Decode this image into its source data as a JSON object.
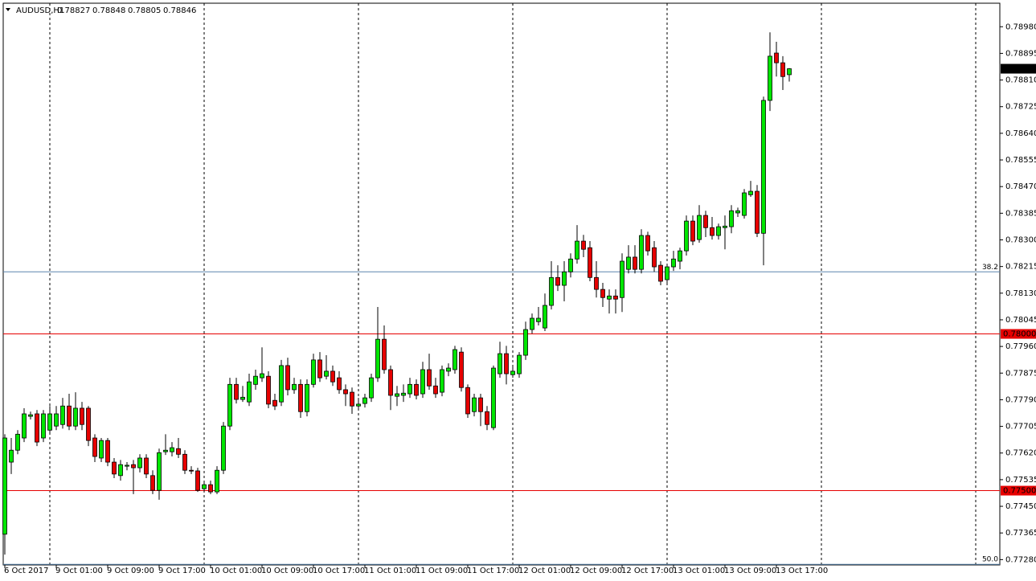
{
  "chart_data": {
    "type": "candlestick",
    "title": "AUDUSD,H1",
    "up_color": "#00e600",
    "down_color": "#e60000",
    "wick_color": "#000000",
    "categories": [
      "6 Oct 2017",
      null,
      null,
      null,
      null,
      null,
      null,
      null,
      "9 Oct 01:00",
      null,
      null,
      null,
      null,
      null,
      null,
      null,
      "9 Oct 09:00",
      null,
      null,
      null,
      null,
      null,
      null,
      null,
      "9 Oct 17:00",
      null,
      null,
      null,
      null,
      null,
      null,
      null,
      "10 Oct 01:00",
      null,
      null,
      null,
      null,
      null,
      null,
      null,
      "10 Oct 09:00",
      null,
      null,
      null,
      null,
      null,
      null,
      null,
      "10 Oct 17:00",
      null,
      null,
      null,
      null,
      null,
      null,
      null,
      "11 Oct 01:00",
      null,
      null,
      null,
      null,
      null,
      null,
      null,
      "11 Oct 09:00",
      null,
      null,
      null,
      null,
      null,
      null,
      null,
      "11 Oct 17:00",
      null,
      null,
      null,
      null,
      null,
      null,
      null,
      "12 Oct 01:00",
      null,
      null,
      null,
      null,
      null,
      null,
      null,
      "12 Oct 09:00",
      null,
      null,
      null,
      null,
      null,
      null,
      null,
      "12 Oct 17:00",
      null,
      null,
      null,
      null,
      null,
      null,
      null,
      "13 Oct 01:00",
      null,
      null,
      null,
      null,
      null,
      null,
      null,
      "13 Oct 09:00",
      null,
      null,
      null,
      null,
      null,
      null,
      null,
      "13 Oct 17:00",
      null,
      null
    ],
    "open": [
      0.77361,
      0.77591,
      0.77629,
      0.77668,
      0.77737,
      0.77745,
      0.77668,
      0.77693,
      0.77706,
      0.77711,
      0.7777,
      0.77706,
      0.77763,
      0.77763,
      0.77668,
      0.77604,
      0.7766,
      0.77591,
      0.77548,
      0.77578,
      0.77583,
      0.77573,
      0.77604,
      0.77548,
      0.77501,
      0.77624,
      0.77624,
      0.77634,
      0.77616,
      0.77565,
      0.77563,
      0.77506,
      0.77519,
      0.77496,
      0.77565,
      0.77706,
      0.77839,
      0.77791,
      0.77783,
      0.77839,
      0.7786,
      0.77865,
      0.77788,
      0.77783,
      0.77899,
      0.77822,
      0.77839,
      0.77752,
      0.77839,
      0.77917,
      0.77865,
      0.77881,
      0.7786,
      0.77822,
      0.77814,
      0.7777,
      0.77778,
      0.77796,
      0.7786,
      0.77983,
      0.77886,
      0.77801,
      0.77804,
      0.77809,
      0.77839,
      0.77809,
      0.77886,
      0.77834,
      0.77814,
      0.77881,
      0.77886,
      0.77942,
      0.77829,
      0.77752,
      0.77796,
      0.77752,
      0.77701,
      0.77873,
      0.77937,
      0.7787,
      0.77873,
      0.77932,
      0.78014,
      0.78039,
      0.78019,
      0.78091,
      0.7818,
      0.78155,
      0.78198,
      0.78239,
      0.78296,
      0.78275,
      0.7818,
      0.78142,
      0.78111,
      0.78121,
      0.78116,
      0.78206,
      0.78245,
      0.78206,
      0.78314,
      0.78275,
      0.78219,
      0.78173,
      0.78214,
      0.78232,
      0.78265,
      0.7836,
      0.78301,
      0.78378,
      0.78339,
      0.78314,
      0.78339,
      0.78342,
      0.78386,
      0.78378,
      0.78444,
      0.78455,
      0.78321,
      0.78745,
      0.78896,
      0.78865,
      0.78827
    ],
    "high": [
      0.7768,
      0.77668,
      0.77693,
      0.77763,
      0.77752,
      0.77757,
      0.77757,
      0.7777,
      0.7777,
      0.77796,
      0.77809,
      0.77814,
      0.77783,
      0.7777,
      0.7768,
      0.77668,
      0.77668,
      0.77604,
      0.77598,
      0.77591,
      0.77598,
      0.77616,
      0.77616,
      0.77565,
      0.77634,
      0.7768,
      0.77655,
      0.77668,
      0.77629,
      0.77578,
      0.77573,
      0.77532,
      0.77532,
      0.77578,
      0.77719,
      0.7786,
      0.7786,
      0.77834,
      0.77873,
      0.77886,
      0.77957,
      0.77881,
      0.77809,
      0.77917,
      0.77924,
      0.7786,
      0.77855,
      0.77855,
      0.77937,
      0.77942,
      0.77932,
      0.77899,
      0.77881,
      0.77839,
      0.77829,
      0.77796,
      0.77809,
      0.77873,
      0.78086,
      0.78027,
      0.77899,
      0.77834,
      0.77839,
      0.7786,
      0.77855,
      0.77911,
      0.77937,
      0.7786,
      0.77899,
      0.77906,
      0.77962,
      0.77957,
      0.77839,
      0.77809,
      0.77809,
      0.7777,
      0.77899,
      0.77975,
      0.77962,
      0.77899,
      0.77942,
      0.78039,
      0.78065,
      0.78086,
      0.78129,
      0.78232,
      0.78219,
      0.78232,
      0.78257,
      0.78347,
      0.78316,
      0.78296,
      0.78232,
      0.78163,
      0.78142,
      0.78142,
      0.78257,
      0.78283,
      0.78283,
      0.78334,
      0.78326,
      0.78296,
      0.78232,
      0.78224,
      0.78265,
      0.78275,
      0.78378,
      0.78378,
      0.78411,
      0.78393,
      0.78373,
      0.78352,
      0.78378,
      0.78411,
      0.78403,
      0.78462,
      0.78488,
      0.78475,
      0.78757,
      0.78962,
      0.78932,
      0.78886,
      0.78848
    ],
    "low": [
      0.77296,
      0.77553,
      0.77616,
      0.77655,
      0.77727,
      0.77642,
      0.77655,
      0.7768,
      0.77693,
      0.77698,
      0.77693,
      0.77693,
      0.77693,
      0.77642,
      0.77591,
      0.77591,
      0.77578,
      0.7754,
      0.77532,
      0.77565,
      0.77489,
      0.77558,
      0.7754,
      0.77489,
      0.77471,
      0.77614,
      0.77609,
      0.77604,
      0.77553,
      0.77553,
      0.77496,
      0.77496,
      0.77489,
      0.77489,
      0.77553,
      0.77693,
      0.77778,
      0.77783,
      0.7777,
      0.77822,
      0.77847,
      0.77763,
      0.77757,
      0.7777,
      0.77804,
      0.77809,
      0.77732,
      0.77737,
      0.77829,
      0.77847,
      0.77855,
      0.77834,
      0.77809,
      0.7777,
      0.77745,
      0.77757,
      0.77765,
      0.77783,
      0.77847,
      0.77873,
      0.77757,
      0.7777,
      0.77783,
      0.77796,
      0.77791,
      0.77796,
      0.77822,
      0.77796,
      0.77801,
      0.77865,
      0.77873,
      0.77816,
      0.77732,
      0.77737,
      0.77706,
      0.77693,
      0.77693,
      0.7786,
      0.77839,
      0.7786,
      0.7786,
      0.77917,
      0.78001,
      0.78027,
      0.78009,
      0.78078,
      0.78137,
      0.78104,
      0.7818,
      0.78224,
      0.78245,
      0.78168,
      0.78116,
      0.78086,
      0.78065,
      0.78065,
      0.7807,
      0.78193,
      0.78193,
      0.78193,
      0.7825,
      0.78198,
      0.78155,
      0.78163,
      0.78201,
      0.78206,
      0.7825,
      0.78283,
      0.78291,
      0.78309,
      0.78301,
      0.78301,
      0.7827,
      0.78321,
      0.78373,
      0.78368,
      0.78437,
      0.78309,
      0.78219,
      0.78711,
      0.78821,
      0.78778,
      0.78805
    ],
    "close": [
      0.77668,
      0.77629,
      0.7768,
      0.77745,
      0.77742,
      0.77655,
      0.77745,
      0.77745,
      0.77745,
      0.7777,
      0.77706,
      0.77763,
      0.77711,
      0.7766,
      0.77609,
      0.7766,
      0.77591,
      0.77553,
      0.77583,
      0.77581,
      0.77573,
      0.77604,
      0.77553,
      0.77501,
      0.77621,
      0.77629,
      0.77637,
      0.77616,
      0.77565,
      0.77563,
      0.77501,
      0.77519,
      0.77496,
      0.77565,
      0.77706,
      0.77839,
      0.77791,
      0.77798,
      0.77847,
      0.77865,
      0.77873,
      0.77776,
      0.7777,
      0.77899,
      0.77822,
      0.77839,
      0.77752,
      0.77839,
      0.77917,
      0.7786,
      0.77881,
      0.77847,
      0.77822,
      0.77809,
      0.7777,
      0.77776,
      0.77796,
      0.7786,
      0.77983,
      0.77886,
      0.77804,
      0.77809,
      0.77811,
      0.77839,
      0.77804,
      0.77886,
      0.77834,
      0.77809,
      0.77886,
      0.77891,
      0.7795,
      0.77829,
      0.77745,
      0.77796,
      0.77752,
      0.77711,
      0.77891,
      0.77937,
      0.77873,
      0.77881,
      0.77932,
      0.78014,
      0.7805,
      0.7805,
      0.78091,
      0.7818,
      0.78155,
      0.78198,
      0.78239,
      0.78296,
      0.7827,
      0.7818,
      0.78142,
      0.78116,
      0.78121,
      0.78111,
      0.78232,
      0.78245,
      0.78206,
      0.78314,
      0.78265,
      0.78214,
      0.78168,
      0.78214,
      0.78239,
      0.78265,
      0.7836,
      0.78296,
      0.78378,
      0.78339,
      0.78314,
      0.78342,
      0.78344,
      0.78393,
      0.78393,
      0.7845,
      0.78455,
      0.78321,
      0.78745,
      0.78886,
      0.78865,
      0.78821,
      0.78846
    ],
    "ylim": [
      0.77263,
      0.79055
    ],
    "yticks": [
      {
        "value": 0.7898,
        "label": "0.78980"
      },
      0.78895,
      {
        "value": 0.7881,
        "label": "0.78810"
      },
      0.78725,
      {
        "value": 0.7864,
        "label": "0.78640"
      },
      0.78555,
      {
        "value": 0.7847,
        "label": "0.78470"
      },
      0.78385,
      {
        "value": 0.783,
        "label": "0.78300"
      },
      0.78215,
      {
        "value": 0.7813,
        "label": "0.78130"
      },
      0.78045,
      {
        "value": 0.7796,
        "label": "0.77960"
      },
      0.77875,
      {
        "value": 0.7779,
        "label": "0.77790"
      },
      0.77705,
      {
        "value": 0.7762,
        "label": "0.77620"
      },
      0.77535,
      {
        "value": 0.7745,
        "label": "0.77450"
      },
      0.77365,
      {
        "value": 0.7728,
        "label": "0.77280"
      }
    ],
    "levels": [
      {
        "value": 0.78,
        "label": "0.78000",
        "color": "#e60000"
      },
      {
        "value": 0.775,
        "label": "0.77500",
        "color": "#e60000"
      }
    ],
    "fib_levels": [
      {
        "value": 0.78198,
        "label": "38.2",
        "color": "#5b86ad"
      },
      {
        "value": 0.77265,
        "label": "50.0",
        "color": "#5b86ad"
      }
    ]
  }
}
